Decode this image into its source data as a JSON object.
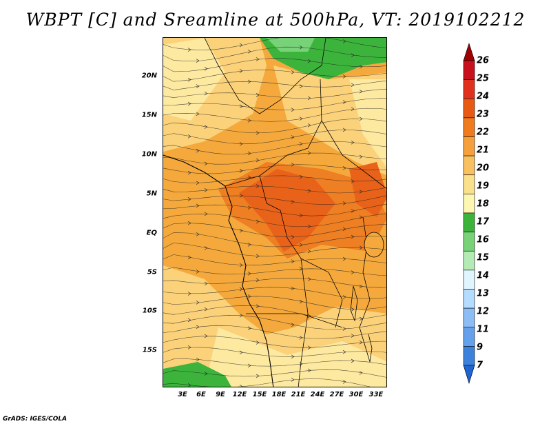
{
  "title": "WBPT [C] and Sreamline at 500hPa, VT: 2019102212",
  "footer": "GrADS: IGES/COLA",
  "map": {
    "variable": "Wet-bulb potential temperature",
    "overlay": "streamlines",
    "level": "500hPa",
    "valid_time": "2019102212",
    "lat_labels": [
      "20N",
      "15N",
      "10N",
      "5N",
      "EQ",
      "5S",
      "10S",
      "15S"
    ],
    "lon_labels": [
      "3E",
      "6E",
      "9E",
      "12E",
      "15E",
      "18E",
      "21E",
      "24E",
      "27E",
      "30E",
      "33E"
    ]
  },
  "colorbar": {
    "labels": [
      "26",
      "25",
      "24",
      "23",
      "22",
      "21",
      "20",
      "19",
      "18",
      "17",
      "16",
      "15",
      "14",
      "13",
      "12",
      "11",
      "9",
      "7"
    ],
    "colors": [
      "#a00000",
      "#c8101e",
      "#e0301e",
      "#e85a14",
      "#f07a1e",
      "#f5a03c",
      "#f8c060",
      "#fae08a",
      "#fdf7b2",
      "#3cb43c",
      "#78d278",
      "#b4ebb4",
      "#e1f5ff",
      "#b4dcff",
      "#8cbef5",
      "#64a0eb",
      "#3c82dc",
      "#1e64d2"
    ],
    "top_arrow_color": "#a00000",
    "bottom_arrow_color": "#1e64d2"
  }
}
